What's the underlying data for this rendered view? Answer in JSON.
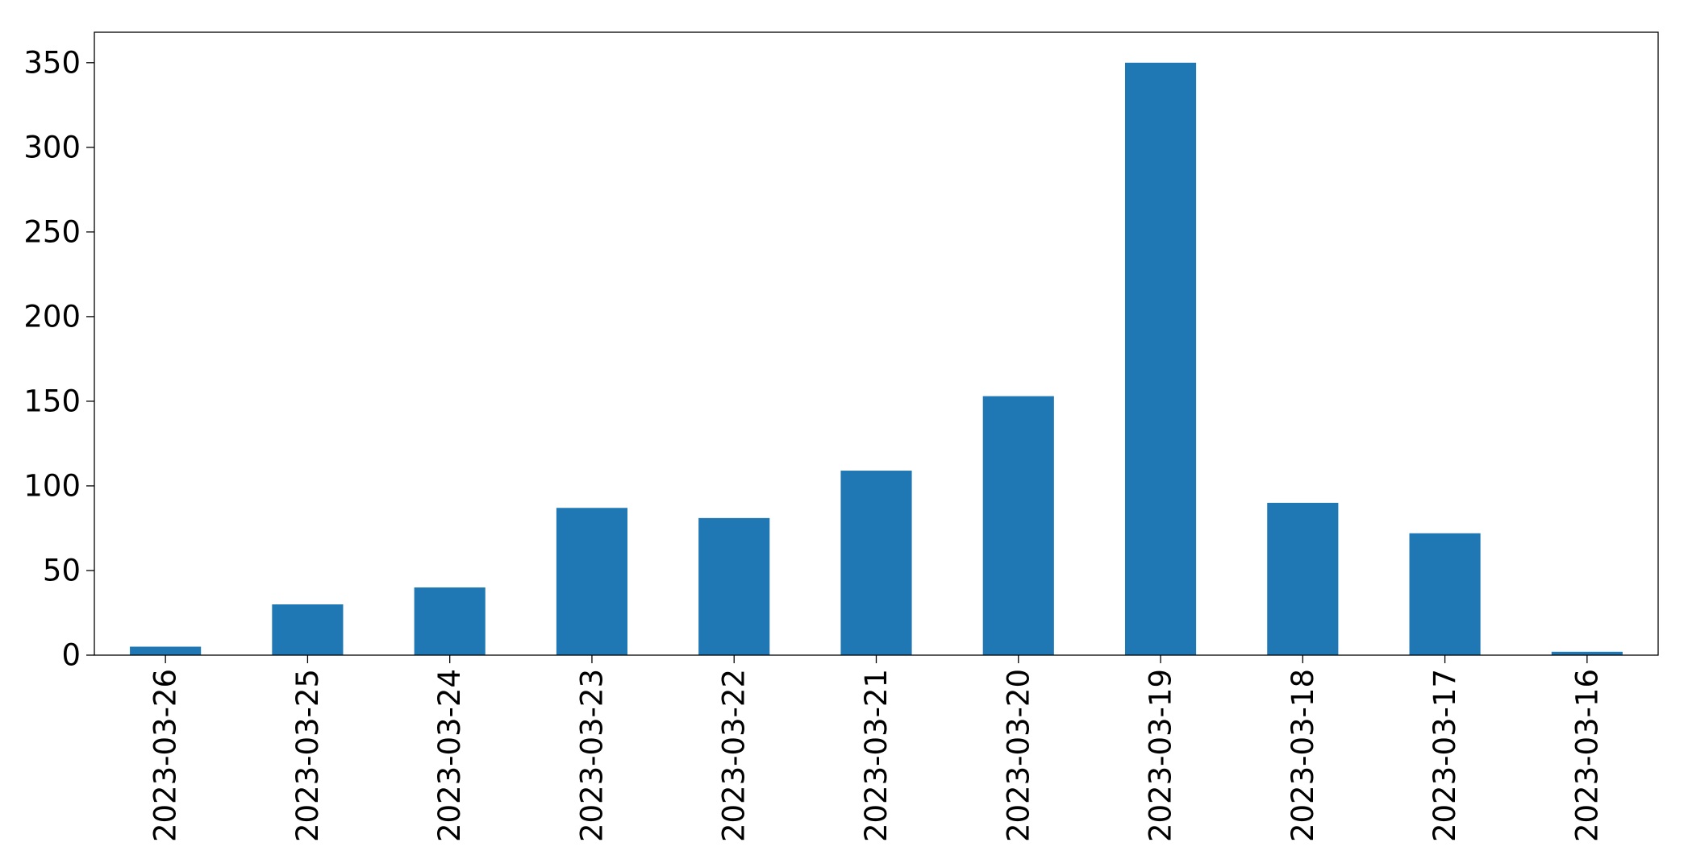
{
  "chart_data": {
    "type": "bar",
    "title": "",
    "xlabel": "",
    "ylabel": "",
    "categories": [
      "2023-03-26",
      "2023-03-25",
      "2023-03-24",
      "2023-03-23",
      "2023-03-22",
      "2023-03-21",
      "2023-03-20",
      "2023-03-19",
      "2023-03-18",
      "2023-03-17",
      "2023-03-16"
    ],
    "values": [
      5,
      30,
      40,
      87,
      81,
      109,
      153,
      350,
      90,
      72,
      2
    ],
    "ylim": [
      0,
      368
    ],
    "yticks": [
      0,
      50,
      100,
      150,
      200,
      250,
      300,
      350
    ],
    "bar_color": "#1f77b4",
    "grid": false,
    "legend": "none"
  }
}
